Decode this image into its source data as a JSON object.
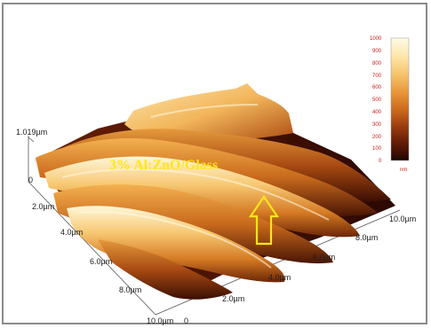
{
  "overlay_label": "3% Al:ZnO/Glass",
  "z_axis": {
    "max_label": "1.019µm",
    "zero_label": "0"
  },
  "y_axis_ticks": [
    "2.0µm",
    "4.0µm",
    "6.0µm",
    "8.0µm",
    "10.0µm"
  ],
  "x_axis_ticks": [
    "0",
    "2.0µm",
    "4.0µm",
    "6.0µm",
    "8.0µm",
    "10.0µm"
  ],
  "colorbar": {
    "ticks": [
      "1000",
      "900",
      "800",
      "700",
      "600",
      "500",
      "400",
      "300",
      "200",
      "100",
      "0"
    ],
    "unit": "nm",
    "colors": [
      "#fffbe8",
      "#fde6a8",
      "#f6c36a",
      "#e89438",
      "#c9651b",
      "#9b3d0f",
      "#6a2008",
      "#3e0f04",
      "#1a0502"
    ]
  },
  "arrow_color": "#ffe617"
}
